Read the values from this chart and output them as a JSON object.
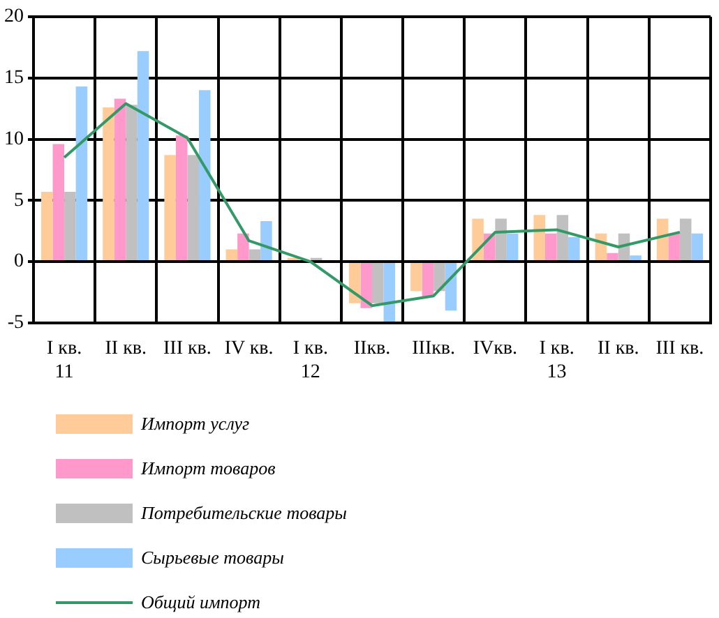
{
  "chart_data": {
    "type": "bar",
    "categories": [
      "I кв. 11",
      "II кв.",
      "III кв.",
      "IV кв.",
      "I кв. 12",
      "IIкв.",
      "IIIкв.",
      "IVкв.",
      "I кв. 13",
      "II кв.",
      "III кв."
    ],
    "series": [
      {
        "name": "Импорт услуг",
        "color": "#ffcc99",
        "values": [
          5.7,
          12.6,
          8.7,
          1.0,
          0.3,
          -3.4,
          -2.4,
          3.5,
          3.8,
          2.3,
          3.5
        ]
      },
      {
        "name": "Импорт товаров",
        "color": "#ff99cc",
        "values": [
          9.6,
          13.3,
          10.3,
          2.3,
          0,
          -3.8,
          -2.9,
          2.3,
          2.3,
          0.7,
          2.3
        ]
      },
      {
        "name": "Потребительские товары",
        "color": "#c0c0c0",
        "values": [
          5.7,
          12.8,
          8.7,
          1.0,
          0.3,
          -3.4,
          -2.4,
          3.5,
          3.8,
          2.3,
          3.5
        ]
      },
      {
        "name": "Сырьевые товары",
        "color": "#99ccff",
        "values": [
          14.3,
          17.2,
          14.0,
          3.3,
          0,
          -4.9,
          -4.0,
          2.3,
          2.0,
          0.5,
          2.3
        ]
      },
      {
        "name": "Общий импорт",
        "type": "line",
        "color": "#339966",
        "values": [
          8.5,
          12.9,
          10.1,
          1.7,
          0,
          -3.6,
          -2.8,
          2.4,
          2.6,
          1.2,
          2.4
        ]
      }
    ],
    "ylim": [
      -5,
      20
    ],
    "yticks": [
      -5,
      0,
      5,
      10,
      15,
      20
    ],
    "grid": true,
    "legend": "bottom",
    "marker": "none"
  }
}
